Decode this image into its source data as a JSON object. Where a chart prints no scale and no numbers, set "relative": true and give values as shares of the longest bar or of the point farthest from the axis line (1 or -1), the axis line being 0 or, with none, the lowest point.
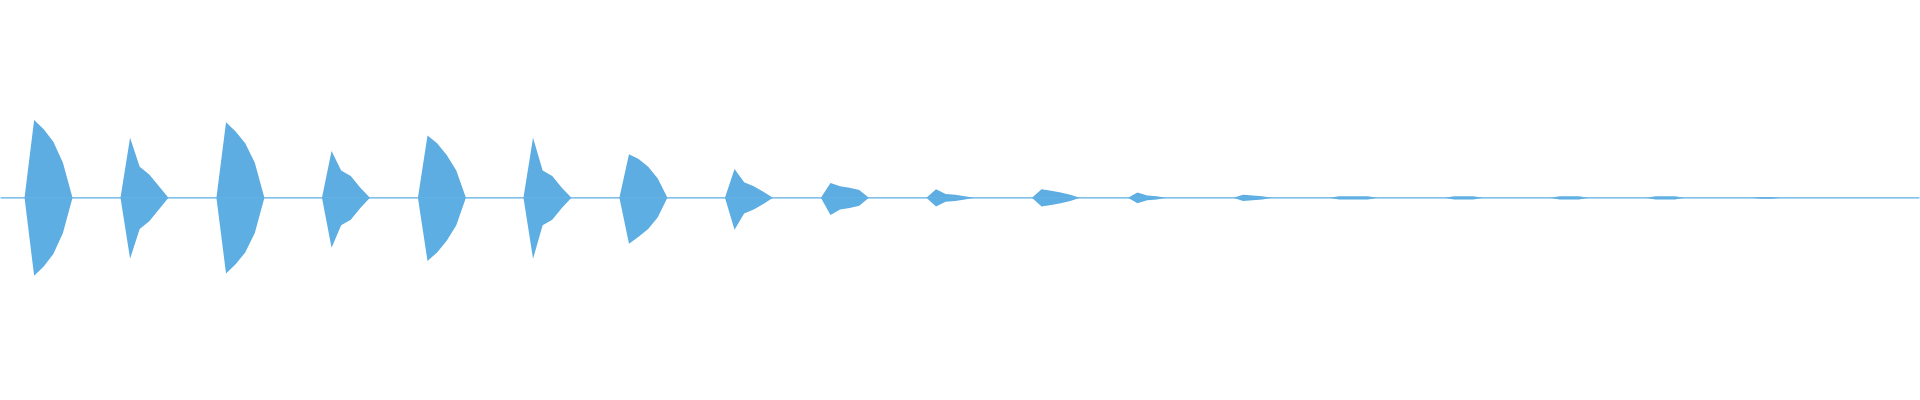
{
  "chart_data": {
    "type": "area",
    "relative": true,
    "categories": [
      null,
      null,
      null,
      null,
      null,
      null,
      null,
      null,
      null,
      null,
      null,
      null,
      null,
      null,
      null,
      null,
      null,
      null,
      null,
      null,
      null,
      null,
      null,
      null,
      null,
      null,
      null,
      null,
      null,
      null,
      null,
      null,
      null,
      null,
      null,
      null,
      null,
      null,
      null,
      null,
      null,
      null,
      null,
      null,
      null,
      null,
      null,
      null,
      null,
      null,
      null,
      null,
      null,
      null,
      null,
      null,
      null,
      null,
      null,
      null,
      null,
      null,
      null,
      null,
      null,
      null,
      null,
      null,
      null,
      null,
      null,
      null,
      null,
      null,
      null,
      null,
      null,
      null,
      null,
      null,
      null,
      null,
      null,
      null,
      null,
      null,
      null,
      null,
      null,
      null,
      null,
      null,
      null,
      null,
      null,
      null,
      null,
      null,
      null,
      null,
      null,
      null,
      null,
      null,
      null,
      null,
      null,
      null,
      null,
      null,
      null,
      null,
      null,
      null,
      null,
      null,
      null,
      null,
      null,
      null,
      null,
      null,
      null,
      null,
      null,
      null,
      null,
      null,
      null,
      null,
      null,
      null,
      null,
      null,
      null,
      null,
      null,
      null,
      null,
      null,
      null,
      null,
      null,
      null,
      null,
      null,
      null,
      null,
      null,
      null,
      null,
      null,
      null,
      null,
      null,
      null,
      null,
      null,
      null,
      null,
      null,
      null,
      null,
      null,
      null,
      null,
      null,
      null,
      null,
      null,
      null,
      null,
      null,
      null,
      null,
      null,
      null,
      null,
      null,
      null,
      null,
      null,
      null,
      null,
      null,
      null,
      null,
      null,
      null,
      null,
      null,
      null,
      null,
      null,
      null,
      null,
      null,
      null,
      null,
      null
    ],
    "series": [
      {
        "color": "#5dade2",
        "values": [
          0,
          0,
          0,
          1.0,
          0.88,
          0.72,
          0.45,
          0,
          0,
          0,
          0,
          0,
          0,
          0.77,
          0.4,
          0.3,
          0.15,
          0,
          0,
          0,
          0,
          0,
          0,
          0.97,
          0.85,
          0.7,
          0.45,
          0,
          0,
          0,
          0,
          0,
          0,
          0,
          0.6,
          0.35,
          0.28,
          0.13,
          0,
          0,
          0,
          0,
          0,
          0,
          0.8,
          0.7,
          0.55,
          0.35,
          0,
          0,
          0,
          0,
          0,
          0,
          0,
          0.77,
          0.35,
          0.28,
          0.13,
          0,
          0,
          0,
          0,
          0,
          0,
          0.56,
          0.5,
          0.4,
          0.25,
          0,
          0,
          0,
          0,
          0,
          0,
          0,
          0.37,
          0.2,
          0.15,
          0.08,
          0,
          0,
          0,
          0,
          0,
          0,
          0.19,
          0.15,
          0.13,
          0.1,
          0,
          0,
          0,
          0,
          0,
          0,
          0,
          0.11,
          0.05,
          0.04,
          0.02,
          0,
          0,
          0,
          0,
          0,
          0,
          0,
          0.11,
          0.09,
          0.07,
          0.04,
          0,
          0,
          0,
          0,
          0,
          0,
          0.07,
          0.03,
          0.02,
          0,
          0,
          0,
          0,
          0,
          0,
          0,
          0,
          0.04,
          0.03,
          0.02,
          0,
          0,
          0,
          0,
          0,
          0,
          0,
          0.02,
          0.02,
          0.02,
          0.02,
          0,
          0,
          0,
          0,
          0,
          0,
          0,
          0,
          0.02,
          0.02,
          0.02,
          0,
          0,
          0,
          0,
          0,
          0,
          0,
          0,
          0.02,
          0.02,
          0.02,
          0,
          0,
          0,
          0,
          0,
          0,
          0,
          0.02,
          0.02,
          0.02,
          0,
          0,
          0,
          0,
          0,
          0,
          0,
          0,
          0.01,
          0.01,
          0,
          0,
          0,
          0,
          0,
          0,
          0,
          0,
          0,
          0,
          0,
          0,
          0,
          0,
          0
        ]
      },
      {
        "color": "#5caee3",
        "values": [
          0,
          0,
          0,
          -1.0,
          -0.88,
          -0.72,
          -0.45,
          0,
          0,
          0,
          0,
          0,
          0,
          -0.78,
          -0.4,
          -0.3,
          -0.15,
          0,
          0,
          0,
          0,
          0,
          0,
          -0.97,
          -0.85,
          -0.7,
          -0.45,
          0,
          0,
          0,
          0,
          0,
          0,
          0,
          -0.64,
          -0.35,
          -0.28,
          -0.13,
          0,
          0,
          0,
          0,
          0,
          0,
          -0.81,
          -0.7,
          -0.55,
          -0.35,
          0,
          0,
          0,
          0,
          0,
          0,
          0,
          -0.78,
          -0.35,
          -0.28,
          -0.13,
          0,
          0,
          0,
          0,
          0,
          0,
          -0.59,
          -0.5,
          -0.4,
          -0.25,
          0,
          0,
          0,
          0,
          0,
          0,
          0,
          -0.41,
          -0.2,
          -0.15,
          -0.08,
          0,
          0,
          0,
          0,
          0,
          0,
          -0.22,
          -0.15,
          -0.13,
          -0.1,
          0,
          0,
          0,
          0,
          0,
          0,
          0,
          -0.11,
          -0.05,
          -0.04,
          -0.02,
          0,
          0,
          0,
          0,
          0,
          0,
          0,
          -0.11,
          -0.09,
          -0.07,
          -0.04,
          0,
          0,
          0,
          0,
          0,
          0,
          -0.07,
          -0.03,
          -0.02,
          0,
          0,
          0,
          0,
          0,
          0,
          0,
          0,
          -0.04,
          -0.03,
          -0.02,
          0,
          0,
          0,
          0,
          0,
          0,
          0,
          -0.02,
          -0.02,
          -0.02,
          -0.02,
          0,
          0,
          0,
          0,
          0,
          0,
          0,
          0,
          -0.02,
          -0.02,
          -0.02,
          0,
          0,
          0,
          0,
          0,
          0,
          0,
          0,
          -0.02,
          -0.02,
          -0.02,
          0,
          0,
          0,
          0,
          0,
          0,
          0,
          -0.02,
          -0.02,
          -0.02,
          0,
          0,
          0,
          0,
          0,
          0,
          0,
          0,
          -0.01,
          -0.01,
          0,
          0,
          0,
          0,
          0,
          0,
          0,
          0,
          0,
          0,
          0,
          0,
          0,
          0,
          0
        ]
      }
    ]
  }
}
